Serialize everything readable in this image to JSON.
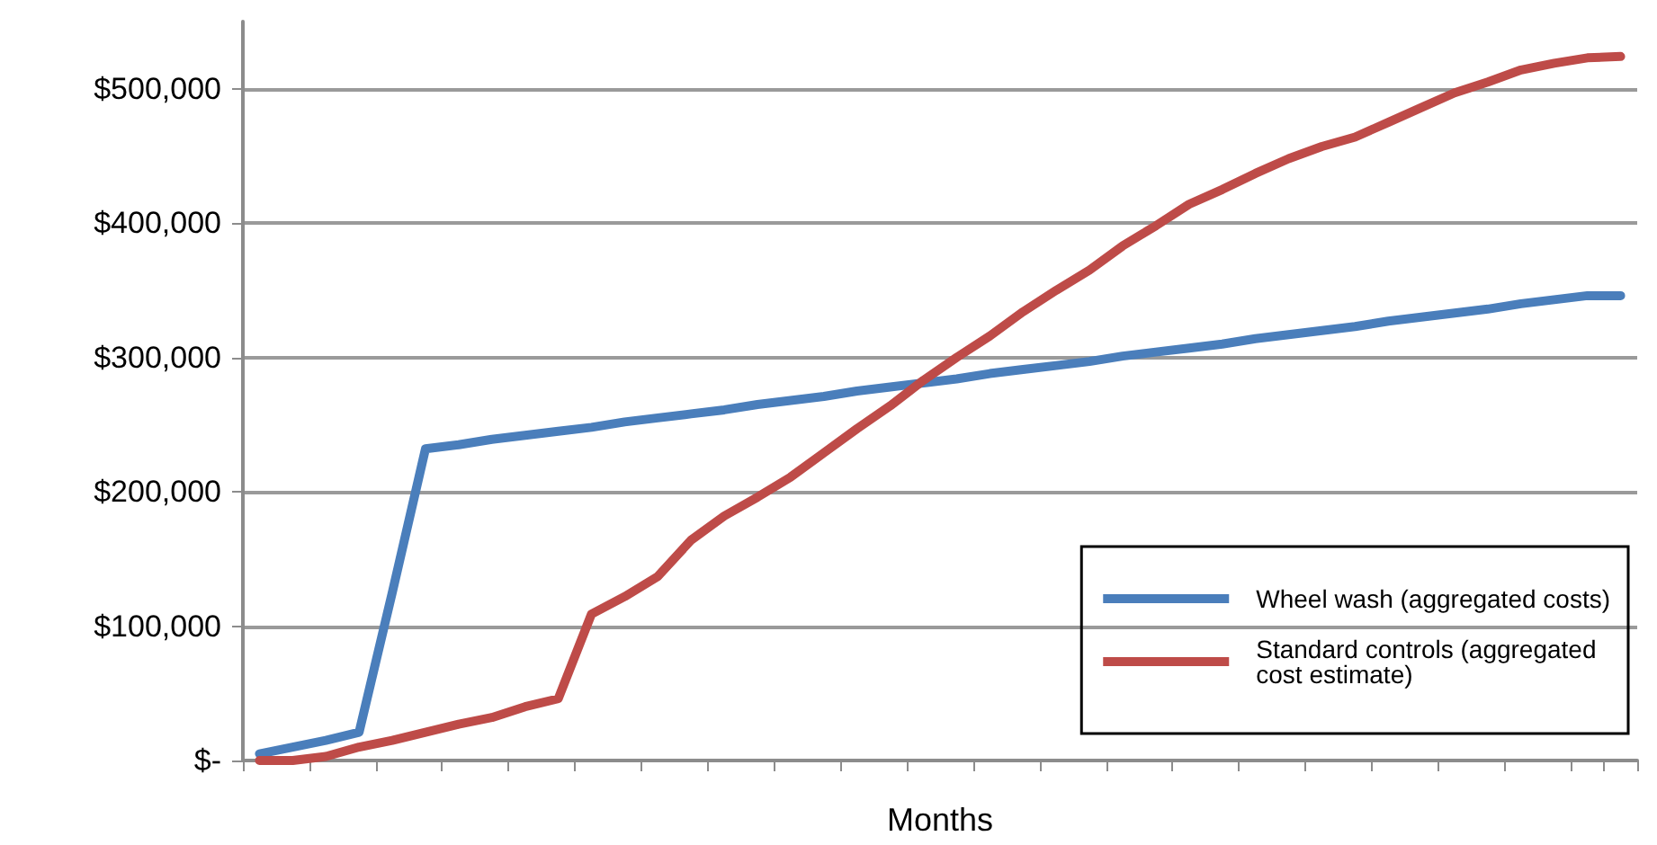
{
  "chart_data": {
    "type": "line",
    "xlabel": "Months",
    "categories": [
      null,
      null,
      null,
      null,
      null,
      null,
      null,
      null,
      null,
      null,
      null,
      null,
      null,
      null,
      null,
      null,
      null,
      null,
      null,
      null,
      null,
      null,
      null,
      null,
      null,
      null,
      null,
      null,
      null,
      null,
      null,
      null,
      null,
      null,
      null,
      null,
      null,
      null,
      null,
      null,
      null,
      null
    ],
    "series": [
      {
        "name": "Wheel wash (aggregated costs)",
        "color": "#4a7ebb",
        "values": [
          5000,
          10000,
          15000,
          21000,
          125000,
          232000,
          235000,
          239000,
          242000,
          245000,
          248000,
          252000,
          255000,
          258000,
          261000,
          265000,
          268000,
          271000,
          275000,
          278000,
          281000,
          284000,
          288000,
          291000,
          294000,
          297000,
          301000,
          304000,
          307000,
          310000,
          314000,
          317000,
          320000,
          323000,
          327000,
          330000,
          333000,
          336000,
          340000,
          343000,
          346000,
          346000
        ]
      },
      {
        "name": "Standard controls (aggregated cost estimate)",
        "color": "#be4b48",
        "values": [
          0,
          0,
          3000,
          10000,
          15000,
          21000,
          27000,
          32000,
          40000,
          46000,
          109000,
          122000,
          137000,
          164000,
          182000,
          196000,
          211000,
          229000,
          247000,
          264000,
          283000,
          300000,
          316000,
          334000,
          350000,
          365000,
          383000,
          398000,
          414000,
          425000,
          437000,
          448000,
          457000,
          464000,
          475000,
          486000,
          497000,
          505000,
          514000,
          519000,
          523000,
          524000
        ]
      }
    ],
    "ylim": [
      0,
      550000
    ],
    "yticks": [
      {
        "value": 0,
        "label": "$-"
      },
      {
        "value": 100000,
        "label": "$100,000"
      },
      {
        "value": 200000,
        "label": "$200,000"
      },
      {
        "value": 300000,
        "label": "$300,000"
      },
      {
        "value": 400000,
        "label": "$400,000"
      },
      {
        "value": 500000,
        "label": "$500,000"
      }
    ],
    "grid": "y",
    "legend": "bottom right",
    "marker": "none",
    "line_style": "solid",
    "tick_labels": "y"
  }
}
